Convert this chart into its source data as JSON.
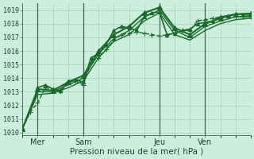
{
  "xlabel": "Pression niveau de la mer( hPa )",
  "bg_color": "#cceedd",
  "grid_color": "#aaccbb",
  "line_color": "#1a6b2a",
  "xlim": [
    0,
    120
  ],
  "ylim": [
    1009.8,
    1019.5
  ],
  "yticks": [
    1010,
    1011,
    1012,
    1013,
    1014,
    1015,
    1016,
    1017,
    1018,
    1019
  ],
  "xtick_positions": [
    8,
    32,
    72,
    96
  ],
  "xtick_labels": [
    "Mer",
    "Sam",
    "Jeu",
    "Ven"
  ],
  "vlines": [
    8,
    32,
    72,
    96
  ],
  "series": [
    {
      "x": [
        0,
        4,
        8,
        12,
        16,
        20,
        24,
        28,
        32,
        36,
        40,
        44,
        48,
        52,
        56,
        60,
        64,
        68,
        72,
        76,
        80,
        84,
        88,
        92,
        96,
        100,
        104,
        108,
        112,
        116,
        120
      ],
      "y": [
        1010.3,
        1011.5,
        1012.2,
        1013.3,
        1013.2,
        1013.0,
        1013.7,
        1013.8,
        1013.5,
        1015.2,
        1015.5,
        1016.1,
        1016.8,
        1017.2,
        1017.3,
        1017.4,
        1017.3,
        1017.2,
        1017.1,
        1017.2,
        1017.3,
        1017.5,
        1017.5,
        1018.2,
        1018.3,
        1018.4,
        1018.5,
        1018.5,
        1018.5,
        1018.5,
        1018.5
      ],
      "marker": "+",
      "lw": 1.0,
      "ms": 4,
      "ls": "--"
    },
    {
      "x": [
        8,
        12,
        16,
        20,
        24,
        28,
        32,
        36,
        40,
        44,
        48,
        52,
        56,
        60,
        64,
        68,
        72,
        76,
        80,
        84,
        88,
        92,
        96,
        100,
        104,
        108,
        112,
        116,
        120
      ],
      "y": [
        1013.3,
        1013.5,
        1013.2,
        1013.1,
        1013.8,
        1013.9,
        1013.7,
        1015.5,
        1015.8,
        1016.5,
        1017.5,
        1017.8,
        1017.7,
        1017.5,
        1018.5,
        1018.8,
        1018.85,
        1017.2,
        1017.3,
        1017.5,
        1017.6,
        1018.0,
        1018.1,
        1018.2,
        1018.5,
        1018.6,
        1018.7,
        1018.7,
        1018.7
      ],
      "marker": "^",
      "lw": 1.2,
      "ms": 3,
      "ls": "-"
    },
    {
      "x": [
        0,
        8,
        16,
        24,
        32,
        40,
        48,
        56,
        64,
        72,
        80,
        88,
        96,
        104,
        112,
        120
      ],
      "y": [
        1010.3,
        1013.2,
        1013.1,
        1013.7,
        1014.2,
        1016.0,
        1017.2,
        1017.8,
        1018.8,
        1019.2,
        1017.7,
        1017.2,
        1018.0,
        1018.4,
        1018.7,
        1018.75
      ],
      "marker": "^",
      "lw": 1.5,
      "ms": 4,
      "ls": "-"
    },
    {
      "x": [
        0,
        8,
        16,
        24,
        32,
        40,
        48,
        56,
        64,
        72,
        80,
        88,
        96,
        104,
        112,
        120
      ],
      "y": [
        1010.3,
        1013.0,
        1013.0,
        1013.5,
        1014.0,
        1015.8,
        1016.9,
        1017.5,
        1018.5,
        1019.0,
        1017.5,
        1017.0,
        1017.8,
        1018.2,
        1018.5,
        1018.6
      ],
      "marker": null,
      "lw": 1.0,
      "ms": 0,
      "ls": "-"
    },
    {
      "x": [
        0,
        8,
        16,
        24,
        32,
        40,
        48,
        56,
        64,
        72,
        80,
        88,
        96,
        104,
        112,
        120
      ],
      "y": [
        1010.3,
        1012.8,
        1012.9,
        1013.3,
        1013.8,
        1015.5,
        1016.7,
        1017.2,
        1018.2,
        1018.8,
        1017.2,
        1016.8,
        1017.5,
        1018.0,
        1018.3,
        1018.4
      ],
      "marker": null,
      "lw": 1.0,
      "ms": 0,
      "ls": "-"
    }
  ]
}
